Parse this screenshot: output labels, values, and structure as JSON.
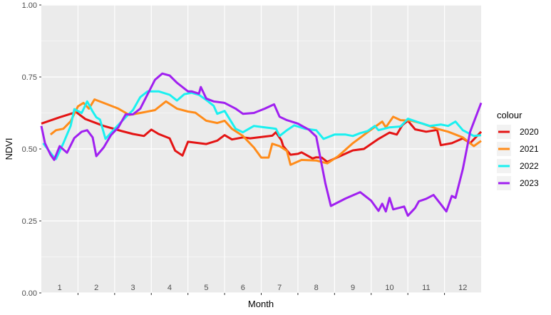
{
  "chart_data": {
    "type": "line",
    "title": "",
    "xlabel": "Month",
    "ylabel": "NDVI",
    "xlim": [
      0.5,
      12.5
    ],
    "ylim": [
      0,
      1
    ],
    "x_tick_labels": [
      "1",
      "2",
      "3",
      "4",
      "5",
      "6",
      "7",
      "8",
      "9",
      "10",
      "11",
      "12"
    ],
    "y_ticks": [
      0,
      0.25,
      0.5,
      0.75,
      1
    ],
    "y_tick_labels": [
      "0.00",
      "0.25",
      "0.50",
      "0.75",
      "1.00"
    ],
    "grid": true,
    "legend_title": "colour",
    "legend_position": "right",
    "series": [
      {
        "name": "2020",
        "color": "#e41414",
        "points": [
          [
            0.5,
            0.588
          ],
          [
            1.0,
            0.61
          ],
          [
            1.45,
            0.628
          ],
          [
            1.7,
            0.604
          ],
          [
            2.2,
            0.58
          ],
          [
            2.7,
            0.562
          ],
          [
            3.0,
            0.552
          ],
          [
            3.3,
            0.545
          ],
          [
            3.5,
            0.567
          ],
          [
            3.7,
            0.552
          ],
          [
            4.0,
            0.537
          ],
          [
            4.15,
            0.494
          ],
          [
            4.35,
            0.477
          ],
          [
            4.5,
            0.525
          ],
          [
            5.0,
            0.517
          ],
          [
            5.3,
            0.529
          ],
          [
            5.5,
            0.548
          ],
          [
            5.7,
            0.533
          ],
          [
            6.0,
            0.54
          ],
          [
            6.2,
            0.537
          ],
          [
            6.8,
            0.546
          ],
          [
            6.9,
            0.558
          ],
          [
            7.05,
            0.53
          ],
          [
            7.1,
            0.51
          ],
          [
            7.3,
            0.48
          ],
          [
            7.5,
            0.483
          ],
          [
            7.6,
            0.488
          ],
          [
            7.9,
            0.467
          ],
          [
            8.0,
            0.471
          ],
          [
            8.15,
            0.47
          ],
          [
            8.3,
            0.455
          ],
          [
            8.7,
            0.478
          ],
          [
            9.0,
            0.495
          ],
          [
            9.3,
            0.5
          ],
          [
            9.7,
            0.535
          ],
          [
            10.0,
            0.557
          ],
          [
            10.2,
            0.55
          ],
          [
            10.35,
            0.583
          ],
          [
            10.5,
            0.598
          ],
          [
            10.7,
            0.568
          ],
          [
            11.0,
            0.56
          ],
          [
            11.3,
            0.566
          ],
          [
            11.4,
            0.513
          ],
          [
            11.7,
            0.52
          ],
          [
            12.0,
            0.537
          ],
          [
            12.2,
            0.52
          ],
          [
            12.5,
            0.56
          ]
        ]
      },
      {
        "name": "2021",
        "color": "#ff8c1a",
        "points": [
          [
            0.75,
            0.55
          ],
          [
            0.9,
            0.565
          ],
          [
            1.1,
            0.57
          ],
          [
            1.3,
            0.596
          ],
          [
            1.5,
            0.648
          ],
          [
            1.65,
            0.66
          ],
          [
            1.8,
            0.64
          ],
          [
            1.95,
            0.672
          ],
          [
            2.3,
            0.655
          ],
          [
            2.6,
            0.64
          ],
          [
            2.9,
            0.618
          ],
          [
            3.2,
            0.625
          ],
          [
            3.6,
            0.635
          ],
          [
            3.9,
            0.665
          ],
          [
            4.2,
            0.64
          ],
          [
            4.5,
            0.63
          ],
          [
            4.7,
            0.626
          ],
          [
            5.0,
            0.598
          ],
          [
            5.3,
            0.59
          ],
          [
            5.5,
            0.598
          ],
          [
            5.7,
            0.57
          ],
          [
            6.0,
            0.545
          ],
          [
            6.3,
            0.505
          ],
          [
            6.5,
            0.47
          ],
          [
            6.7,
            0.47
          ],
          [
            6.8,
            0.518
          ],
          [
            7.0,
            0.51
          ],
          [
            7.2,
            0.493
          ],
          [
            7.3,
            0.445
          ],
          [
            7.6,
            0.462
          ],
          [
            8.0,
            0.46
          ],
          [
            8.3,
            0.45
          ],
          [
            8.6,
            0.475
          ],
          [
            9.0,
            0.52
          ],
          [
            9.4,
            0.558
          ],
          [
            9.8,
            0.595
          ],
          [
            9.9,
            0.575
          ],
          [
            10.1,
            0.612
          ],
          [
            10.3,
            0.6
          ],
          [
            10.6,
            0.598
          ],
          [
            10.9,
            0.588
          ],
          [
            11.3,
            0.57
          ],
          [
            11.6,
            0.56
          ],
          [
            12.0,
            0.54
          ],
          [
            12.3,
            0.51
          ],
          [
            12.5,
            0.528
          ]
        ]
      },
      {
        "name": "2022",
        "color": "#1af0f0",
        "points": [
          [
            0.55,
            0.52
          ],
          [
            0.8,
            0.478
          ],
          [
            0.9,
            0.465
          ],
          [
            1.1,
            0.52
          ],
          [
            1.3,
            0.58
          ],
          [
            1.4,
            0.638
          ],
          [
            1.6,
            0.625
          ],
          [
            1.75,
            0.665
          ],
          [
            1.9,
            0.63
          ],
          [
            2.0,
            0.61
          ],
          [
            2.1,
            0.602
          ],
          [
            2.25,
            0.535
          ],
          [
            2.5,
            0.57
          ],
          [
            2.8,
            0.61
          ],
          [
            3.0,
            0.635
          ],
          [
            3.2,
            0.68
          ],
          [
            3.4,
            0.7
          ],
          [
            3.7,
            0.7
          ],
          [
            4.0,
            0.688
          ],
          [
            4.2,
            0.668
          ],
          [
            4.4,
            0.69
          ],
          [
            4.6,
            0.695
          ],
          [
            4.8,
            0.688
          ],
          [
            5.0,
            0.67
          ],
          [
            5.2,
            0.65
          ],
          [
            5.3,
            0.622
          ],
          [
            5.5,
            0.632
          ],
          [
            5.8,
            0.57
          ],
          [
            6.0,
            0.558
          ],
          [
            6.3,
            0.58
          ],
          [
            6.6,
            0.575
          ],
          [
            6.9,
            0.57
          ],
          [
            7.0,
            0.545
          ],
          [
            7.2,
            0.565
          ],
          [
            7.4,
            0.582
          ],
          [
            7.7,
            0.57
          ],
          [
            8.0,
            0.565
          ],
          [
            8.2,
            0.535
          ],
          [
            8.5,
            0.55
          ],
          [
            8.8,
            0.55
          ],
          [
            9.0,
            0.545
          ],
          [
            9.2,
            0.555
          ],
          [
            9.4,
            0.562
          ],
          [
            9.6,
            0.58
          ],
          [
            9.7,
            0.565
          ],
          [
            10.0,
            0.575
          ],
          [
            10.3,
            0.578
          ],
          [
            10.5,
            0.605
          ],
          [
            10.8,
            0.592
          ],
          [
            11.1,
            0.58
          ],
          [
            11.4,
            0.585
          ],
          [
            11.6,
            0.58
          ],
          [
            11.8,
            0.595
          ],
          [
            12.0,
            0.565
          ],
          [
            12.3,
            0.545
          ],
          [
            12.5,
            0.548
          ]
        ]
      },
      {
        "name": "2023",
        "color": "#a020f0",
        "points": [
          [
            0.5,
            0.58
          ],
          [
            0.6,
            0.52
          ],
          [
            0.75,
            0.48
          ],
          [
            0.85,
            0.462
          ],
          [
            1.0,
            0.51
          ],
          [
            1.1,
            0.498
          ],
          [
            1.2,
            0.487
          ],
          [
            1.4,
            0.538
          ],
          [
            1.6,
            0.56
          ],
          [
            1.75,
            0.565
          ],
          [
            1.9,
            0.54
          ],
          [
            2.0,
            0.475
          ],
          [
            2.2,
            0.505
          ],
          [
            2.4,
            0.548
          ],
          [
            2.6,
            0.575
          ],
          [
            2.8,
            0.62
          ],
          [
            3.0,
            0.62
          ],
          [
            3.2,
            0.64
          ],
          [
            3.4,
            0.69
          ],
          [
            3.6,
            0.74
          ],
          [
            3.8,
            0.762
          ],
          [
            4.0,
            0.755
          ],
          [
            4.2,
            0.73
          ],
          [
            4.5,
            0.7
          ],
          [
            4.6,
            0.7
          ],
          [
            4.8,
            0.692
          ],
          [
            4.85,
            0.715
          ],
          [
            5.0,
            0.675
          ],
          [
            5.2,
            0.665
          ],
          [
            5.5,
            0.66
          ],
          [
            5.8,
            0.64
          ],
          [
            6.0,
            0.622
          ],
          [
            6.3,
            0.625
          ],
          [
            6.6,
            0.64
          ],
          [
            6.85,
            0.655
          ],
          [
            7.0,
            0.612
          ],
          [
            7.2,
            0.6
          ],
          [
            7.5,
            0.588
          ],
          [
            7.8,
            0.567
          ],
          [
            8.0,
            0.543
          ],
          [
            8.25,
            0.38
          ],
          [
            8.4,
            0.302
          ],
          [
            8.8,
            0.328
          ],
          [
            9.2,
            0.35
          ],
          [
            9.5,
            0.32
          ],
          [
            9.7,
            0.285
          ],
          [
            9.8,
            0.31
          ],
          [
            9.9,
            0.283
          ],
          [
            10.0,
            0.33
          ],
          [
            10.1,
            0.29
          ],
          [
            10.4,
            0.3
          ],
          [
            10.5,
            0.268
          ],
          [
            10.7,
            0.295
          ],
          [
            10.8,
            0.318
          ],
          [
            11.0,
            0.327
          ],
          [
            11.2,
            0.34
          ],
          [
            11.4,
            0.308
          ],
          [
            11.55,
            0.283
          ],
          [
            11.7,
            0.337
          ],
          [
            11.8,
            0.33
          ],
          [
            12.0,
            0.43
          ],
          [
            12.2,
            0.56
          ],
          [
            12.5,
            0.66
          ]
        ]
      }
    ]
  }
}
